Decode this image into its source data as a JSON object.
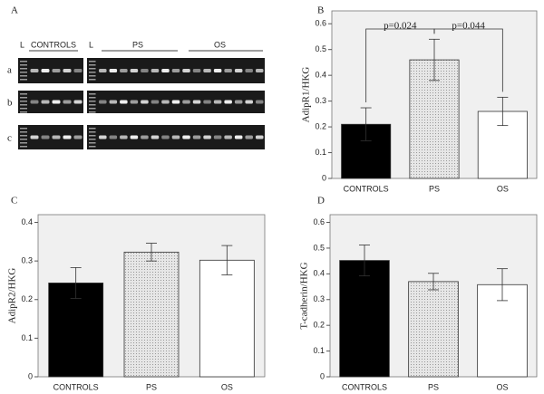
{
  "gel": {
    "panel": "A",
    "lane_labels": [
      "L",
      "CONTROLS",
      "L",
      "PS",
      "OS"
    ],
    "row_labels": [
      "a",
      "b",
      "c"
    ]
  },
  "chart_data": [
    {
      "type": "bar",
      "panel": "B",
      "ylabel": "AdipR1/HKG",
      "categories": [
        "CONTROLS",
        "PS",
        "OS"
      ],
      "values": [
        0.21,
        0.46,
        0.26
      ],
      "errors": [
        0.064,
        0.08,
        0.055
      ],
      "colors": [
        "#000000",
        "#d4d4d4",
        "#ffffff"
      ],
      "ylim": [
        0,
        0.65
      ],
      "yticks": [
        0,
        0.1,
        0.2,
        0.3,
        0.4,
        0.5,
        0.6
      ],
      "annotations": [
        "p=0.024",
        "p=0.044"
      ]
    },
    {
      "type": "bar",
      "panel": "C",
      "ylabel": "AdipR2/HKG",
      "categories": [
        "CONTROLS",
        "PS",
        "OS"
      ],
      "values": [
        0.243,
        0.323,
        0.302
      ],
      "errors": [
        0.04,
        0.023,
        0.038
      ],
      "colors": [
        "#000000",
        "#d4d4d4",
        "#ffffff"
      ],
      "ylim": [
        0,
        0.42
      ],
      "yticks": [
        0,
        0.1,
        0.2,
        0.3,
        0.4
      ]
    },
    {
      "type": "bar",
      "panel": "D",
      "ylabel": "T-cadherin/HKG",
      "categories": [
        "CONTROLS",
        "PS",
        "OS"
      ],
      "values": [
        0.452,
        0.37,
        0.358
      ],
      "errors": [
        0.06,
        0.032,
        0.062
      ],
      "colors": [
        "#000000",
        "#d4d4d4",
        "#ffffff"
      ],
      "ylim": [
        0,
        0.63
      ],
      "yticks": [
        0,
        0.1,
        0.2,
        0.3,
        0.4,
        0.5,
        0.6
      ]
    }
  ]
}
